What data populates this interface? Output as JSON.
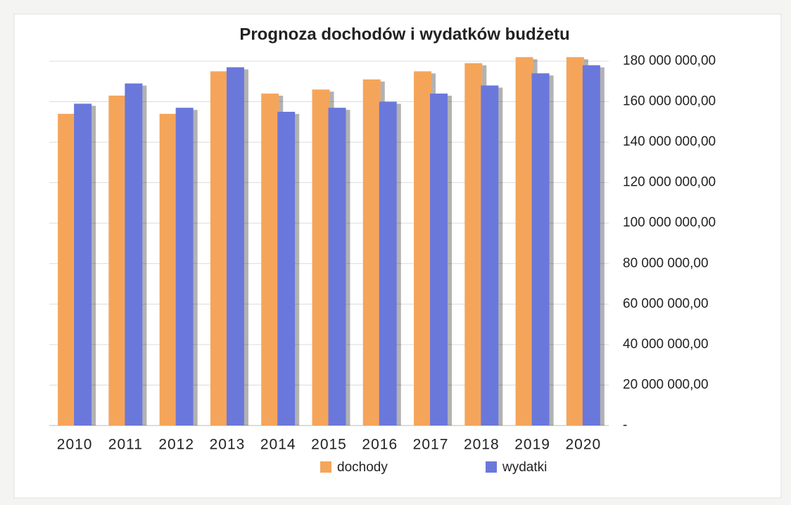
{
  "chart_data": {
    "type": "bar",
    "title": "Prognoza dochodów i wydatków budżetu",
    "categories": [
      "2010",
      "2011",
      "2012",
      "2013",
      "2014",
      "2015",
      "2016",
      "2017",
      "2018",
      "2019",
      "2020"
    ],
    "series": [
      {
        "name": "dochody",
        "color": "#f5a55a",
        "values": [
          154000000,
          163000000,
          154000000,
          175000000,
          164000000,
          166000000,
          171000000,
          175000000,
          179000000,
          182000000,
          182000000
        ]
      },
      {
        "name": "wydatki",
        "color": "#6a78dc",
        "values": [
          159000000,
          169000000,
          157000000,
          177000000,
          155000000,
          157000000,
          160000000,
          164000000,
          168000000,
          174000000,
          178000000
        ]
      }
    ],
    "ylim": [
      0,
      180000000
    ],
    "yticks": [
      {
        "value": 0,
        "label": "-"
      },
      {
        "value": 20000000,
        "label": "20 000 000,00"
      },
      {
        "value": 40000000,
        "label": "40 000 000,00"
      },
      {
        "value": 60000000,
        "label": "60 000 000,00"
      },
      {
        "value": 80000000,
        "label": "80 000 000,00"
      },
      {
        "value": 100000000,
        "label": "100 000 000,00"
      },
      {
        "value": 120000000,
        "label": "120 000 000,00"
      },
      {
        "value": 140000000,
        "label": "140 000 000,00"
      },
      {
        "value": 160000000,
        "label": "160 000 000,00"
      },
      {
        "value": 180000000,
        "label": "180 000 000,00"
      }
    ],
    "yaxis_side": "right",
    "grid": true,
    "legend": "bottom"
  }
}
